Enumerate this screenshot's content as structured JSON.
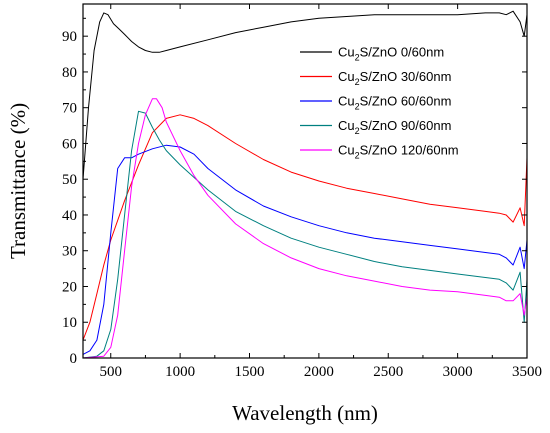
{
  "chart_data": {
    "type": "line",
    "title": "",
    "xlabel": "Wavelength (nm)",
    "ylabel": "Transmittance (%)",
    "xlim": [
      300,
      3500
    ],
    "ylim": [
      0,
      99
    ],
    "xticks": [
      500,
      1000,
      1500,
      2000,
      2500,
      3000,
      3500
    ],
    "yticks": [
      0,
      10,
      20,
      30,
      40,
      50,
      60,
      70,
      80,
      90
    ],
    "grid": false,
    "legend_position": "top-right",
    "series": [
      {
        "name": "Cu2S/ZnO 0/60nm",
        "legend": {
          "pre": "Cu",
          "sub": "2",
          "post": "S/ZnO 0/60nm"
        },
        "color": "#000000",
        "x": [
          300,
          340,
          380,
          420,
          450,
          480,
          520,
          560,
          600,
          650,
          700,
          750,
          800,
          850,
          900,
          1000,
          1200,
          1400,
          1600,
          1800,
          2000,
          2200,
          2400,
          2600,
          2800,
          3000,
          3200,
          3300,
          3350,
          3400,
          3450,
          3480,
          3500
        ],
        "y": [
          50,
          70,
          86,
          94,
          96.5,
          96,
          93.5,
          92,
          90.5,
          88.5,
          87,
          86,
          85.5,
          85.5,
          86,
          87,
          89,
          91,
          92.5,
          94,
          95,
          95.5,
          96,
          96,
          96,
          96,
          96.5,
          96.5,
          96,
          97,
          94,
          90,
          96
        ]
      },
      {
        "name": "Cu2S/ZnO 30/60nm",
        "legend": {
          "pre": "Cu",
          "sub": "2",
          "post": "S/ZnO 30/60nm"
        },
        "color": "#ff0000",
        "x": [
          300,
          350,
          400,
          450,
          500,
          600,
          700,
          800,
          900,
          1000,
          1100,
          1200,
          1400,
          1600,
          1800,
          2000,
          2200,
          2400,
          2600,
          2800,
          3000,
          3200,
          3300,
          3350,
          3400,
          3450,
          3480,
          3500
        ],
        "y": [
          5,
          10,
          18,
          26,
          33,
          44,
          54,
          63,
          67,
          68,
          67,
          65,
          60,
          55.5,
          52,
          49.5,
          47.5,
          46,
          44.5,
          43,
          42,
          41,
          40.5,
          40,
          38,
          42,
          37,
          56
        ]
      },
      {
        "name": "Cu2S/ZnO 60/60nm",
        "legend": {
          "pre": "Cu",
          "sub": "2",
          "post": "S/ZnO 60/60nm"
        },
        "color": "#0000ff",
        "x": [
          300,
          350,
          400,
          450,
          500,
          550,
          600,
          650,
          700,
          800,
          900,
          1000,
          1100,
          1200,
          1400,
          1600,
          1800,
          2000,
          2200,
          2400,
          2600,
          2800,
          3000,
          3200,
          3300,
          3350,
          3400,
          3450,
          3480,
          3500
        ],
        "y": [
          1,
          2,
          5,
          15,
          35,
          53,
          56,
          56,
          57,
          58.5,
          59.5,
          59,
          57,
          53,
          47,
          42.5,
          39.5,
          37,
          35,
          33.5,
          32.5,
          31.5,
          30.5,
          29.5,
          29,
          28,
          26,
          31,
          25,
          33
        ]
      },
      {
        "name": "Cu2S/ZnO 90/60nm",
        "legend": {
          "pre": "Cu",
          "sub": "2",
          "post": "S/ZnO 90/60nm"
        },
        "color": "#008080",
        "x": [
          300,
          400,
          450,
          500,
          550,
          600,
          650,
          700,
          750,
          800,
          850,
          900,
          1000,
          1100,
          1200,
          1400,
          1600,
          1800,
          2000,
          2200,
          2400,
          2600,
          2800,
          3000,
          3200,
          3300,
          3350,
          3400,
          3450,
          3480,
          3500
        ],
        "y": [
          0,
          0.5,
          2,
          8,
          22,
          40,
          58,
          69,
          68.5,
          64.5,
          61,
          58,
          54,
          50.5,
          47,
          41,
          37,
          33.5,
          31,
          29,
          27,
          25.5,
          24.5,
          23.5,
          22.5,
          22,
          21,
          19,
          24,
          10,
          22
        ]
      },
      {
        "name": "Cu2S/ZnO 120/60nm",
        "legend": {
          "pre": "Cu",
          "sub": "2",
          "post": "S/ZnO 120/60nm"
        },
        "color": "#ff00ff",
        "x": [
          300,
          450,
          500,
          550,
          600,
          650,
          700,
          750,
          800,
          830,
          870,
          900,
          1000,
          1100,
          1200,
          1400,
          1600,
          1800,
          2000,
          2200,
          2400,
          2600,
          2800,
          3000,
          3200,
          3300,
          3350,
          3400,
          3450,
          3480,
          3500
        ],
        "y": [
          0,
          0.5,
          3,
          12,
          30,
          48,
          60,
          68,
          72.5,
          72.5,
          70,
          66,
          58,
          51,
          45.5,
          37.5,
          32,
          28,
          25,
          23,
          21.5,
          20,
          19,
          18.5,
          17.5,
          17,
          16,
          16,
          18,
          12,
          17
        ]
      }
    ]
  }
}
